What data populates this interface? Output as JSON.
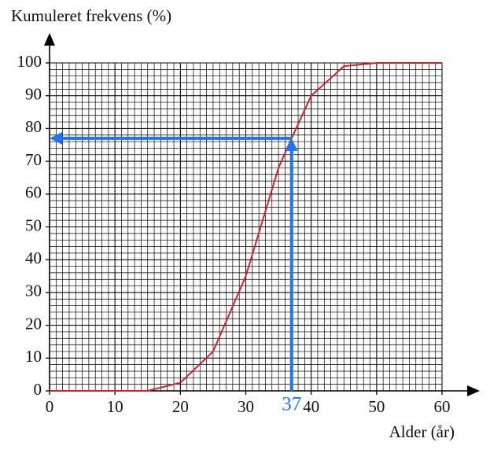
{
  "chart_data": {
    "type": "line",
    "y_label": "Kumuleret frekvens (%)",
    "x_label": "Alder (år)",
    "x": [
      0,
      15,
      20,
      25,
      30,
      35,
      37,
      40,
      45,
      50,
      60
    ],
    "values": [
      0,
      0,
      2.5,
      12,
      35,
      68,
      77,
      90,
      99,
      100,
      100
    ],
    "color": "#d3202f",
    "xlim": [
      0,
      60
    ],
    "ylim": [
      0,
      100
    ],
    "xticks": [
      0,
      10,
      20,
      30,
      40,
      50,
      60
    ],
    "yticks": [
      0,
      10,
      20,
      30,
      40,
      50,
      60,
      70,
      80,
      90,
      100
    ],
    "grid": true,
    "minor_grid": {
      "x": 1,
      "y": 2
    },
    "annotation": {
      "x": 37,
      "y": 77,
      "label": "37",
      "color": "#1f74f5"
    }
  }
}
